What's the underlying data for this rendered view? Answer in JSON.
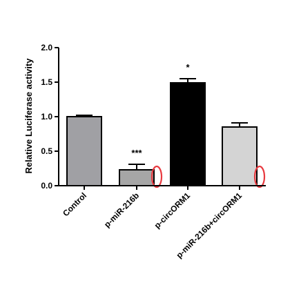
{
  "chart_data": {
    "type": "bar",
    "title": "",
    "xlabel": "",
    "ylabel": "Relative Luciferase activity",
    "ylim": [
      0,
      2.0
    ],
    "yticks": [
      "0.0",
      "0.5",
      "1.0",
      "1.5",
      "2.0"
    ],
    "ytick_values": [
      0,
      0.5,
      1.0,
      1.5,
      2.0
    ],
    "grid": false,
    "categories": [
      "Control",
      "p-miR-216b",
      "p-circORM1",
      "p-miR-216b+circORM1"
    ],
    "values": [
      1.0,
      0.23,
      1.49,
      0.85
    ],
    "errors": [
      0.02,
      0.08,
      0.06,
      0.06
    ],
    "significance": [
      "",
      "***",
      "*",
      ""
    ],
    "bar_colors": [
      "#a0a0a4",
      "#a6a6a6",
      "#000000",
      "#d4d4d4"
    ],
    "annotation_markers": [
      "",
      "red-ellipse",
      "",
      "red-ellipse"
    ],
    "annotation_color": "#e8393f"
  }
}
